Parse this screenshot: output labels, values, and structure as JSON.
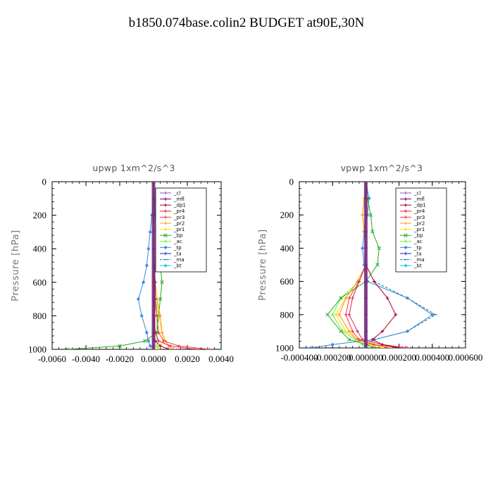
{
  "title": "b1850.074base.colin2  BUDGET at90E,30N",
  "chart_data": [
    {
      "type": "line",
      "title": "upwp   1xm^2/s^3",
      "xlabel": "",
      "ylabel": "Pressure [hPa]",
      "xlim": [
        -0.006,
        0.004
      ],
      "ylim": [
        1000,
        0
      ],
      "xticks": [
        -0.006,
        -0.004,
        -0.002,
        0.0,
        0.002,
        0.004
      ],
      "xtick_labels": [
        "-0.0060",
        "-0.0040",
        "-0.0020",
        "0.0000",
        "0.0020",
        "0.0040"
      ],
      "yticks": [
        0,
        200,
        400,
        600,
        800,
        1000
      ],
      "ytick_labels": [
        "0",
        "200",
        "400",
        "600",
        "800",
        "1000"
      ],
      "legend_position": "top-right",
      "series": [
        {
          "name": "_cl",
          "color": "#8855cc",
          "marker": "+",
          "x": [
            0,
            0,
            0,
            0,
            0,
            0,
            0,
            0,
            0,
            0,
            0,
            0,
            0
          ],
          "y": [
            0,
            100,
            200,
            300,
            400,
            500,
            600,
            700,
            800,
            900,
            950,
            980,
            1000
          ]
        },
        {
          "name": "_mfl",
          "color": "#660066",
          "marker": "+",
          "x": [
            0,
            0,
            0,
            0,
            0,
            0,
            0,
            0,
            0,
            0,
            0,
            0,
            0
          ],
          "y": [
            0,
            100,
            200,
            300,
            400,
            500,
            600,
            700,
            800,
            900,
            950,
            980,
            1000
          ]
        },
        {
          "name": "_dp1",
          "color": "#aa0022",
          "marker": "+",
          "x": [
            0,
            0,
            0,
            0,
            0,
            5e-05,
            0.0001,
            0.0001,
            8e-05,
            5e-05,
            0.0001,
            0.0004,
            0.0009
          ],
          "y": [
            0,
            100,
            200,
            300,
            400,
            500,
            600,
            700,
            800,
            900,
            950,
            980,
            1000
          ]
        },
        {
          "name": "_pr4",
          "color": "#dd2255",
          "marker": "+",
          "x": [
            0,
            0,
            0,
            0,
            0,
            0,
            0,
            5e-05,
            5e-05,
            0.0001,
            0.0003,
            0.001,
            0.0025
          ],
          "y": [
            0,
            100,
            200,
            300,
            400,
            500,
            600,
            700,
            800,
            900,
            950,
            980,
            1000
          ]
        },
        {
          "name": "_pr3",
          "color": "#ff3333",
          "marker": "+",
          "x": [
            0,
            0,
            0,
            0,
            0,
            0,
            5e-05,
            0.0001,
            0.0002,
            0.0003,
            0.0006,
            0.0015,
            0.0033
          ],
          "y": [
            0,
            100,
            200,
            300,
            400,
            500,
            600,
            700,
            800,
            900,
            950,
            980,
            1000
          ]
        },
        {
          "name": "_pr2",
          "color": "#ff9900",
          "marker": "+",
          "x": [
            0,
            0,
            0,
            0,
            0,
            5e-05,
            0.0001,
            0.0002,
            0.0004,
            0.0005,
            0.0007,
            0.0009,
            0.0012
          ],
          "y": [
            0,
            100,
            200,
            300,
            400,
            500,
            600,
            700,
            800,
            900,
            950,
            980,
            1000
          ]
        },
        {
          "name": "_pr1",
          "color": "#ffdd00",
          "marker": "+",
          "x": [
            0,
            0,
            0,
            0,
            0,
            5e-05,
            0.0001,
            0.0002,
            0.0003,
            0.0005,
            0.0006,
            0.0004,
            0.0002
          ],
          "y": [
            0,
            100,
            200,
            300,
            400,
            500,
            600,
            700,
            800,
            900,
            950,
            980,
            1000
          ]
        },
        {
          "name": "_bp",
          "color": "#22aa22",
          "marker": "x",
          "x": [
            0,
            5e-05,
            0.0001,
            0.0002,
            0.0003,
            0.0004,
            0.0005,
            0.0004,
            0.0003,
            0.0002,
            -0.0005,
            -0.002,
            -0.0051
          ],
          "y": [
            0,
            100,
            200,
            300,
            400,
            500,
            600,
            700,
            800,
            900,
            950,
            980,
            1000
          ]
        },
        {
          "name": "_ac",
          "color": "#66ee44",
          "marker": "+",
          "x": [
            0,
            0,
            0,
            0,
            0,
            0,
            0.0001,
            0.0002,
            0.0002,
            0.0002,
            0.0002,
            0.0002,
            0.0003
          ],
          "y": [
            0,
            100,
            200,
            300,
            400,
            500,
            600,
            700,
            800,
            900,
            950,
            980,
            1000
          ]
        },
        {
          "name": "_tp",
          "color": "#3388dd",
          "marker": "*",
          "x": [
            0,
            0,
            -0.0001,
            -0.0002,
            -0.0003,
            -0.0004,
            -0.0006,
            -0.0009,
            -0.0007,
            -0.0004,
            -0.0003,
            -0.0002,
            0
          ],
          "y": [
            0,
            100,
            200,
            300,
            400,
            500,
            600,
            700,
            800,
            900,
            950,
            980,
            1000
          ]
        },
        {
          "name": "_ta",
          "color": "#1122cc",
          "marker": "+",
          "x": [
            0,
            0,
            0,
            0,
            0,
            0,
            0,
            0,
            0,
            0,
            0,
            0,
            0
          ],
          "y": [
            0,
            100,
            200,
            300,
            400,
            500,
            600,
            700,
            800,
            900,
            950,
            980,
            1000
          ]
        },
        {
          "name": "_ma",
          "color": "#117799",
          "marker": "-",
          "x": [
            0,
            0,
            0,
            0,
            0,
            0,
            0,
            0,
            0,
            0,
            0,
            0,
            0
          ],
          "y": [
            0,
            100,
            200,
            300,
            400,
            500,
            600,
            700,
            800,
            900,
            950,
            980,
            1000
          ]
        },
        {
          "name": "_bt",
          "color": "#00ccee",
          "marker": "diamond",
          "x": [
            0,
            0,
            0,
            0,
            0,
            0,
            0,
            0,
            0,
            0,
            0,
            0,
            0
          ],
          "y": [
            0,
            100,
            200,
            300,
            400,
            500,
            600,
            700,
            800,
            900,
            950,
            980,
            1000
          ]
        }
      ]
    },
    {
      "type": "line",
      "title": "vpwp   1xm^2/s^3",
      "xlabel": "",
      "ylabel": "Pressure [hPa]",
      "xlim": [
        -0.0004,
        0.0006
      ],
      "ylim": [
        1000,
        0
      ],
      "xticks": [
        -0.0004,
        -0.0002,
        0.0,
        0.0002,
        0.0004,
        0.0006
      ],
      "xtick_labels": [
        "-0.000400",
        "-0.000200",
        "0.000000",
        "0.000200",
        "0.000400",
        "0.000600"
      ],
      "yticks": [
        0,
        200,
        400,
        600,
        800,
        1000
      ],
      "ytick_labels": [
        "0",
        "200",
        "400",
        "600",
        "800",
        "1000"
      ],
      "legend_position": "top-right",
      "series": [
        {
          "name": "_cl",
          "color": "#8855cc",
          "marker": "+",
          "x": [
            0,
            0,
            0,
            0,
            0,
            0,
            0,
            0,
            0,
            0,
            0,
            0,
            0
          ],
          "y": [
            0,
            100,
            200,
            300,
            400,
            500,
            600,
            700,
            800,
            900,
            950,
            980,
            1000
          ]
        },
        {
          "name": "_mfl",
          "color": "#660066",
          "marker": "+",
          "x": [
            0,
            0,
            0,
            0,
            0,
            0,
            0,
            0,
            0,
            0,
            0,
            0,
            0
          ],
          "y": [
            0,
            100,
            200,
            300,
            400,
            500,
            600,
            700,
            800,
            900,
            950,
            980,
            1000
          ]
        },
        {
          "name": "_dp1",
          "color": "#aa0022",
          "marker": "+",
          "x": [
            0,
            0,
            0,
            0,
            0,
            0,
            5e-05,
            0.00013,
            0.00018,
            0.0001,
            4e-05,
            0.0001,
            0.0002
          ],
          "y": [
            0,
            100,
            200,
            300,
            400,
            500,
            600,
            700,
            800,
            900,
            950,
            980,
            1000
          ]
        },
        {
          "name": "_pr4",
          "color": "#dd2255",
          "marker": "+",
          "x": [
            0,
            0,
            0,
            0,
            0,
            0,
            -4e-05,
            -8e-05,
            -0.0001,
            -5e-05,
            -2e-05,
            0.0001,
            0.00025
          ],
          "y": [
            0,
            100,
            200,
            300,
            400,
            500,
            600,
            700,
            800,
            900,
            950,
            980,
            1000
          ]
        },
        {
          "name": "_pr3",
          "color": "#ff3333",
          "marker": "+",
          "x": [
            0,
            0,
            0,
            0,
            0,
            0,
            -4e-05,
            -0.0001,
            -0.00012,
            -8e-05,
            -4e-05,
            5e-05,
            0.00022
          ],
          "y": [
            0,
            100,
            200,
            300,
            400,
            500,
            600,
            700,
            800,
            900,
            950,
            980,
            1000
          ]
        },
        {
          "name": "_pr2",
          "color": "#ff9900",
          "marker": "+",
          "x": [
            0,
            -1e-05,
            -2e-05,
            -1e-05,
            0,
            0,
            -5e-05,
            -0.00012,
            -0.00016,
            -0.0001,
            -5e-05,
            4e-05,
            0.00015
          ],
          "y": [
            0,
            100,
            200,
            300,
            400,
            500,
            600,
            700,
            800,
            900,
            950,
            980,
            1000
          ]
        },
        {
          "name": "_pr1",
          "color": "#ffdd00",
          "marker": "+",
          "x": [
            0,
            -1e-05,
            -2e-05,
            -1e-05,
            0,
            0,
            -5e-05,
            -0.00012,
            -0.00018,
            -0.00012,
            -5e-05,
            3e-05,
            0.0001
          ],
          "y": [
            0,
            100,
            200,
            300,
            400,
            500,
            600,
            700,
            800,
            900,
            950,
            980,
            1000
          ]
        },
        {
          "name": "_bp",
          "color": "#22aa22",
          "marker": "x",
          "x": [
            0,
            1e-05,
            3e-05,
            4e-05,
            8e-05,
            7e-05,
            0,
            -0.00015,
            -0.00023,
            -0.00015,
            -0.0001,
            1e-05,
            5e-05
          ],
          "y": [
            0,
            100,
            200,
            300,
            400,
            500,
            600,
            700,
            800,
            900,
            950,
            980,
            1000
          ]
        },
        {
          "name": "_ac",
          "color": "#66ee44",
          "marker": "+",
          "x": [
            0,
            0,
            0,
            0,
            0,
            0,
            -4e-05,
            -0.00015,
            -0.0002,
            -0.00014,
            -6e-05,
            -2e-05,
            0
          ],
          "y": [
            0,
            100,
            200,
            300,
            400,
            500,
            600,
            700,
            800,
            900,
            950,
            980,
            1000
          ]
        },
        {
          "name": "_tp",
          "color": "#3388dd",
          "marker": "*",
          "x": [
            0,
            2e-05,
            1e-05,
            -1e-05,
            -2e-05,
            -1e-05,
            1e-05,
            0.00025,
            0.0004,
            0.00025,
            5e-05,
            -0.0002,
            -0.00033
          ],
          "y": [
            0,
            100,
            200,
            300,
            400,
            500,
            600,
            700,
            800,
            900,
            950,
            980,
            1000
          ]
        },
        {
          "name": "_ta",
          "color": "#1122cc",
          "marker": "+",
          "x": [
            0,
            0,
            0,
            0,
            0,
            0,
            0,
            0,
            0,
            0,
            0,
            0,
            0
          ],
          "y": [
            0,
            100,
            200,
            300,
            400,
            500,
            600,
            700,
            800,
            900,
            950,
            980,
            1000
          ]
        },
        {
          "name": "_ma",
          "color": "#117799",
          "marker": "-",
          "x": [
            0,
            0,
            0,
            0,
            0,
            0,
            5e-05,
            0.00025,
            0.00042,
            0.00025,
            5e-05,
            0,
            0
          ],
          "y": [
            0,
            100,
            200,
            300,
            400,
            500,
            600,
            700,
            800,
            900,
            950,
            980,
            1000
          ]
        },
        {
          "name": "_bt",
          "color": "#00ccee",
          "marker": "diamond",
          "x": [
            0,
            0,
            0,
            0,
            0,
            0,
            0,
            0,
            0,
            0,
            0,
            0,
            0
          ],
          "y": [
            0,
            100,
            200,
            300,
            400,
            500,
            600,
            700,
            800,
            900,
            950,
            980,
            1000
          ]
        }
      ]
    }
  ]
}
